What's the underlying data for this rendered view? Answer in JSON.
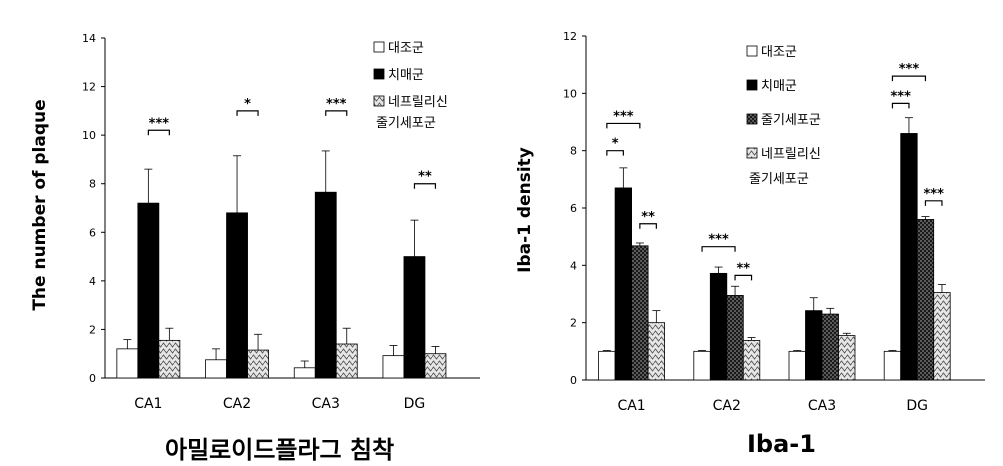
{
  "colors": {
    "control": "#ffffff",
    "dementia": "#000000",
    "stem": "#3a3a3a",
    "nep": "#d9d9d9",
    "axis": "#000000"
  },
  "chart_data": [
    {
      "type": "bar",
      "title": "아밀로이드플라그 침착",
      "ylabel": "The number of plaque",
      "xlabel": "",
      "ylim": [
        0,
        14
      ],
      "yticks": [
        "0",
        "2",
        "4",
        "6",
        "8",
        "10",
        "12",
        "14"
      ],
      "categories": [
        "CA1",
        "CA2",
        "CA3",
        "DG"
      ],
      "legend_position": "top-right",
      "series": [
        {
          "name": "대조군",
          "pattern": "white",
          "values": [
            1.2,
            0.75,
            0.42,
            0.92
          ],
          "errors": [
            0.38,
            0.45,
            0.28,
            0.42
          ]
        },
        {
          "name": "치매군",
          "pattern": "black",
          "values": [
            7.2,
            6.8,
            7.65,
            5.0
          ],
          "errors": [
            1.4,
            2.35,
            1.7,
            1.5
          ]
        },
        {
          "name": "네프릴리신\n줄기세포군",
          "pattern": "zigzag",
          "values": [
            1.55,
            1.15,
            1.4,
            1.0
          ],
          "errors": [
            0.5,
            0.65,
            0.65,
            0.3
          ]
        }
      ],
      "annotations": [
        {
          "category": "CA1",
          "text": "***",
          "y": 10.2
        },
        {
          "category": "CA2",
          "text": "*",
          "y": 11.0
        },
        {
          "category": "CA3",
          "text": "***",
          "y": 11.0
        },
        {
          "category": "DG",
          "text": "**",
          "y": 8.0
        }
      ]
    },
    {
      "type": "bar",
      "title": "Iba-1",
      "ylabel": "Iba-1 density",
      "xlabel": "",
      "ylim": [
        0,
        12
      ],
      "yticks": [
        "0",
        "2",
        "4",
        "6",
        "8",
        "10",
        "12"
      ],
      "categories": [
        "CA1",
        "CA2",
        "CA3",
        "DG"
      ],
      "legend_position": "top-right",
      "series": [
        {
          "name": "대조군",
          "pattern": "white",
          "values": [
            1.0,
            1.0,
            1.0,
            1.0
          ],
          "errors": [
            0.03,
            0.03,
            0.03,
            0.03
          ]
        },
        {
          "name": "치매군",
          "pattern": "black",
          "values": [
            6.7,
            3.72,
            2.42,
            8.6
          ],
          "errors": [
            0.7,
            0.22,
            0.45,
            0.55
          ]
        },
        {
          "name": "줄기세포군",
          "pattern": "checker",
          "values": [
            4.68,
            2.95,
            2.3,
            5.6
          ],
          "errors": [
            0.1,
            0.32,
            0.2,
            0.1
          ]
        },
        {
          "name": "네프릴리신\n줄기세포군",
          "pattern": "zigzag",
          "values": [
            2.0,
            1.38,
            1.55,
            3.05
          ],
          "errors": [
            0.42,
            0.1,
            0.08,
            0.28
          ]
        }
      ],
      "annotations": [
        {
          "category": "CA1",
          "from": 0,
          "to": 1,
          "text": "*",
          "y": 8.0
        },
        {
          "category": "CA1",
          "from": 0,
          "to": 2,
          "text": "***",
          "y": 8.95
        },
        {
          "category": "CA1",
          "from": 2,
          "to": 3,
          "text": "**",
          "y": 5.45
        },
        {
          "category": "CA2",
          "from": 0,
          "to": 2,
          "text": "***",
          "y": 4.65
        },
        {
          "category": "CA2",
          "from": 2,
          "to": 3,
          "text": "**",
          "y": 3.65
        },
        {
          "category": "DG",
          "from": 0,
          "to": 1,
          "text": "***",
          "y": 9.65
        },
        {
          "category": "DG",
          "from": 0,
          "to": 2,
          "text": "***",
          "y": 10.6
        },
        {
          "category": "DG",
          "from": 2,
          "to": 3,
          "text": "***",
          "y": 6.25
        }
      ]
    }
  ]
}
